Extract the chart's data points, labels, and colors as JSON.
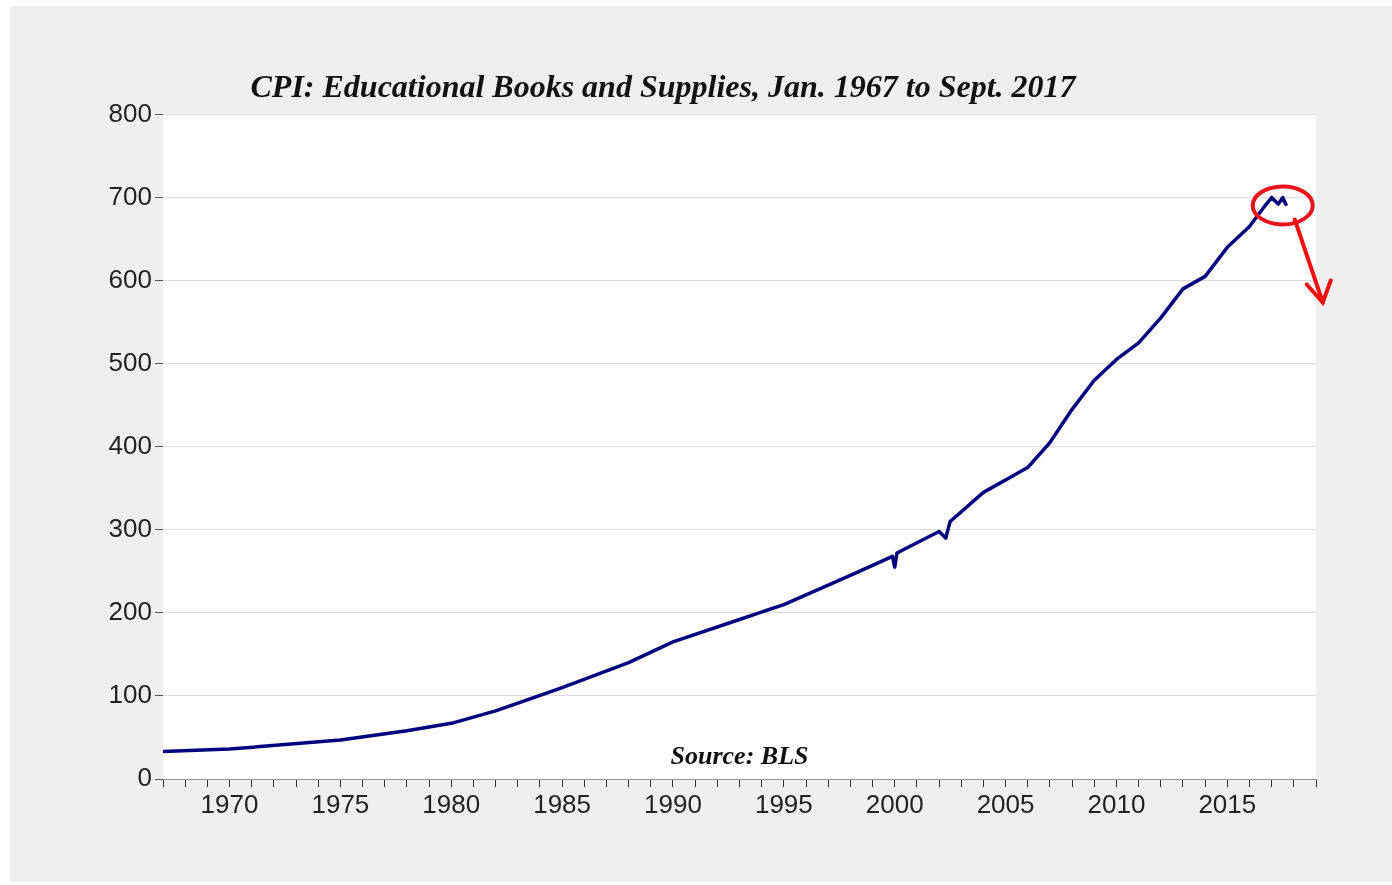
{
  "chart_data": {
    "type": "line",
    "title": "CPI: Educational Books and Supplies, Jan. 1967 to Sept. 2017",
    "x": [
      1967,
      1970,
      1975,
      1978,
      1980,
      1982,
      1985,
      1988,
      1990,
      1993,
      1995,
      1998,
      1999.9,
      2000,
      2000.1,
      2002,
      2002.3,
      2002.5,
      2004,
      2006,
      2007,
      2008,
      2009,
      2010,
      2011,
      2012,
      2013,
      2014,
      2015,
      2016,
      2016.7,
      2017,
      2017.3,
      2017.5,
      2017.67
    ],
    "series": [
      {
        "color": "#00007f",
        "values": [
          33,
          36,
          47,
          58,
          67,
          82,
          110,
          140,
          165,
          192,
          210,
          245,
          268,
          255,
          272,
          298,
          290,
          310,
          345,
          375,
          405,
          445,
          480,
          505,
          525,
          555,
          590,
          605,
          640,
          665,
          690,
          700,
          692,
          700,
          690
        ]
      }
    ],
    "xlim": [
      1967,
      2019
    ],
    "xticks": [
      {
        "value": 1967,
        "label": null
      },
      {
        "value": 1968,
        "label": null
      },
      {
        "value": 1969,
        "label": null
      },
      1970,
      {
        "value": 1971,
        "label": null
      },
      {
        "value": 1972,
        "label": null
      },
      {
        "value": 1973,
        "label": null
      },
      {
        "value": 1974,
        "label": null
      },
      1975,
      {
        "value": 1976,
        "label": null
      },
      {
        "value": 1977,
        "label": null
      },
      {
        "value": 1978,
        "label": null
      },
      {
        "value": 1979,
        "label": null
      },
      1980,
      {
        "value": 1981,
        "label": null
      },
      {
        "value": 1982,
        "label": null
      },
      {
        "value": 1983,
        "label": null
      },
      {
        "value": 1984,
        "label": null
      },
      1985,
      {
        "value": 1986,
        "label": null
      },
      {
        "value": 1987,
        "label": null
      },
      {
        "value": 1988,
        "label": null
      },
      {
        "value": 1989,
        "label": null
      },
      1990,
      {
        "value": 1991,
        "label": null
      },
      {
        "value": 1992,
        "label": null
      },
      {
        "value": 1993,
        "label": null
      },
      {
        "value": 1994,
        "label": null
      },
      1995,
      {
        "value": 1996,
        "label": null
      },
      {
        "value": 1997,
        "label": null
      },
      {
        "value": 1998,
        "label": null
      },
      {
        "value": 1999,
        "label": null
      },
      2000,
      {
        "value": 2001,
        "label": null
      },
      {
        "value": 2002,
        "label": null
      },
      {
        "value": 2003,
        "label": null
      },
      {
        "value": 2004,
        "label": null
      },
      2005,
      {
        "value": 2006,
        "label": null
      },
      {
        "value": 2007,
        "label": null
      },
      {
        "value": 2008,
        "label": null
      },
      {
        "value": 2009,
        "label": null
      },
      2010,
      {
        "value": 2011,
        "label": null
      },
      {
        "value": 2012,
        "label": null
      },
      {
        "value": 2013,
        "label": null
      },
      {
        "value": 2014,
        "label": null
      },
      2015,
      {
        "value": 2016,
        "label": null
      },
      {
        "value": 2017,
        "label": null
      },
      {
        "value": 2018,
        "label": null
      },
      {
        "value": 2019,
        "label": null
      }
    ],
    "ylim": [
      0,
      800
    ],
    "yticks": [
      0,
      100,
      200,
      300,
      400,
      500,
      600,
      700,
      800
    ],
    "grid": "y",
    "legend": false,
    "marker": "none",
    "line_style": "solid",
    "annotations": [
      "Source: BLS"
    ]
  }
}
